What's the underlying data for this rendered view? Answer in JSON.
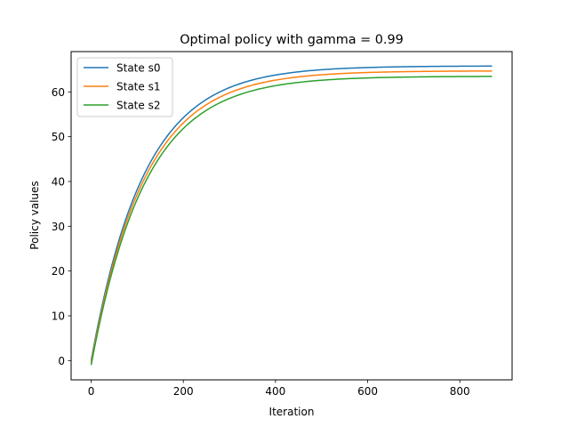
{
  "chart_data": {
    "type": "line",
    "title": "Optimal policy with gamma = 0.99",
    "xlabel": "Iteration",
    "ylabel": "Policy values",
    "xlim": [
      -43.5,
      913.5
    ],
    "ylim": [
      -4.3,
      69.0
    ],
    "xticks": [
      0,
      200,
      400,
      600,
      800
    ],
    "yticks": [
      0,
      10,
      20,
      30,
      40,
      50,
      60
    ],
    "grid": false,
    "legend_position": "top-left",
    "x_max": 870,
    "series": [
      {
        "name": "State s0",
        "color": "#1f77b4",
        "start": 0.0,
        "asymptote": 65.8,
        "tau": 115
      },
      {
        "name": "State s1",
        "color": "#ff7f0e",
        "start": -0.5,
        "asymptote": 64.7,
        "tau": 116
      },
      {
        "name": "State s2",
        "color": "#2ca02c",
        "start": -1.0,
        "asymptote": 63.5,
        "tau": 117
      }
    ]
  }
}
